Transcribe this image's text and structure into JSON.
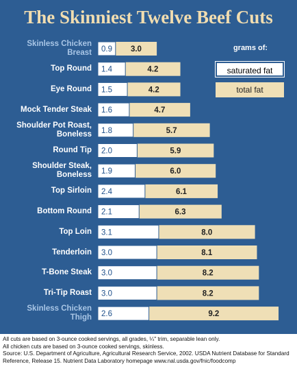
{
  "title": "The Skinniest Twelve Beef Cuts",
  "chart_data": {
    "type": "bar",
    "categories": [
      "Skinless Chicken Breast",
      "Top Round",
      "Eye Round",
      "Mock Tender Steak",
      "Shoulder Pot Roast, Boneless",
      "Round Tip",
      "Shoulder Steak, Boneless",
      "Top Sirloin",
      "Bottom Round",
      "Top Loin",
      "Tenderloin",
      "T-Bone Steak",
      "Tri-Tip Roast",
      "Skinless Chicken Thigh"
    ],
    "label_colors": [
      "#a9c6e6",
      "#ffffff",
      "#ffffff",
      "#ffffff",
      "#ffffff",
      "#ffffff",
      "#ffffff",
      "#ffffff",
      "#ffffff",
      "#ffffff",
      "#ffffff",
      "#ffffff",
      "#ffffff",
      "#a9c6e6"
    ],
    "legend_title": "grams of:",
    "series": [
      {
        "name": "total fat",
        "color": "#efdfb6",
        "values": [
          3,
          4.2,
          4.2,
          4.7,
          5.7,
          5.9,
          6,
          6.1,
          6.3,
          8,
          8.1,
          8.2,
          8.2,
          9.2
        ],
        "value_labels": [
          "3.0",
          "4.2",
          "4.2",
          "4.7",
          "5.7",
          "5.9",
          "6.0",
          "6.1",
          "6.3",
          "8.0",
          "8.1",
          "8.2",
          "8.2",
          "9.2"
        ]
      },
      {
        "name": "saturated fat",
        "color": "#ffffff",
        "values": [
          0.9,
          1.4,
          1.5,
          1.6,
          1.8,
          2,
          1.9,
          2.4,
          2.1,
          3.1,
          3,
          3,
          3,
          2.6
        ],
        "value_labels": [
          "0.9",
          "1.4",
          "1.5",
          "1.6",
          "1.8",
          "2.0",
          "1.9",
          "2.4",
          "2.1",
          "3.1",
          "3.0",
          "3.0",
          "3.0",
          "2.6"
        ]
      }
    ]
  },
  "notes": [
    "All cuts are based on 3-ounce cooked servings, all grades, ¼\" trim, separable lean only.",
    "All chicken cuts are based on 3-ounce cooked servings, skinless.",
    "Source: U.S. Department of Agriculture, Agricultural Research Service, 2002. USDA Nutrient Database for Standard Reference, Release 15. Nutrient Data Laboratory homepage www.nal.usda.gov/fnic/foodcomp"
  ]
}
